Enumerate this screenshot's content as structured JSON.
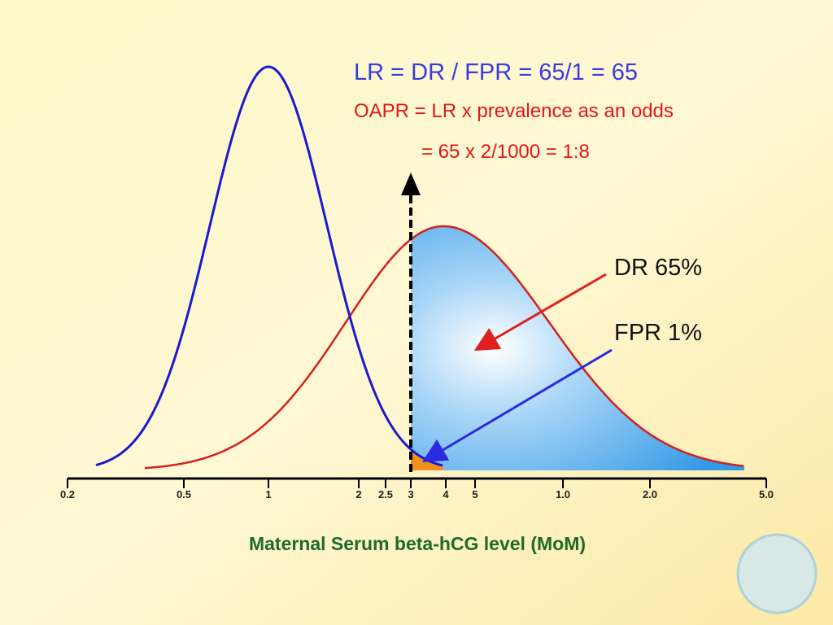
{
  "formula": {
    "lr": "LR = DR / FPR = 65/1 = 65",
    "oapr": "OAPR = LR x prevalence as an odds",
    "oapr_result": "= 65 x 2/1000 = 1:8"
  },
  "labels": {
    "dr": "DR 65%",
    "fpr": "FPR 1%"
  },
  "axis": {
    "title": "Maternal Serum beta-hCG level (MoM)",
    "ticks": [
      "0.2",
      "0.5",
      "1",
      "2",
      "2.5",
      "3",
      "4",
      "5",
      "1.0",
      "2.0",
      "5.0"
    ]
  }
}
